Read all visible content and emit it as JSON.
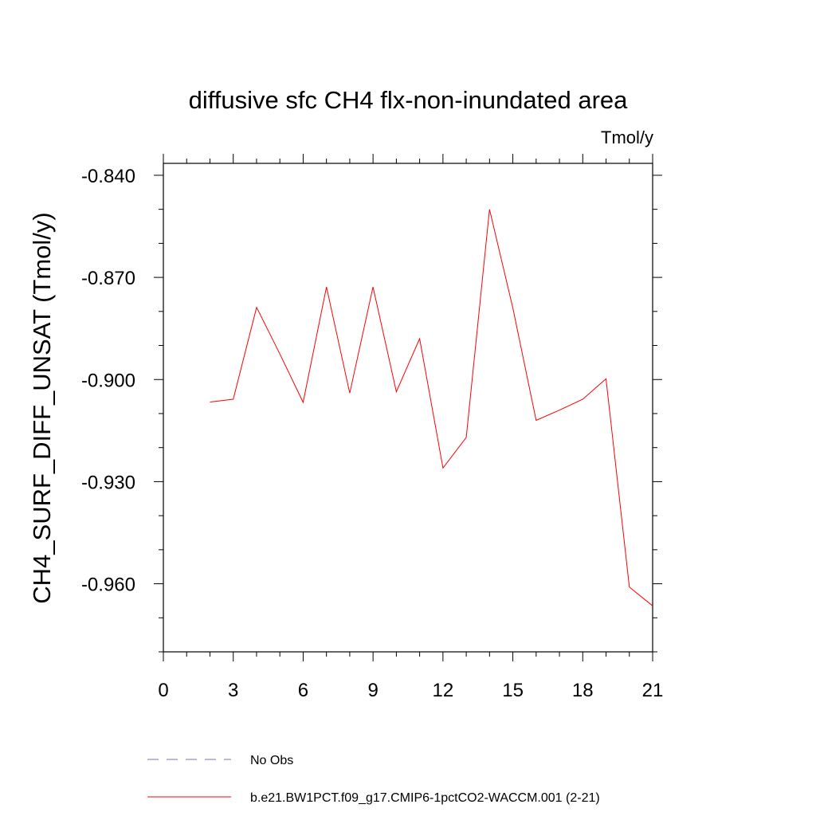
{
  "chart_data": {
    "type": "line",
    "title": "diffusive sfc CH4 flx-non-inundated area",
    "units_label": "Tmol/y",
    "ylabel": "CH4_SURF_DIFF_UNSAT  (Tmol/y)",
    "xlabel": "",
    "xlim": [
      0,
      21
    ],
    "ylim": [
      -0.98,
      -0.8365
    ],
    "x_ticks": [
      0,
      3,
      6,
      9,
      12,
      15,
      18,
      21
    ],
    "x_tick_labels": [
      "0",
      "3",
      "6",
      "9",
      "12",
      "15",
      "18",
      "21"
    ],
    "y_ticks": [
      -0.84,
      -0.87,
      -0.9,
      -0.93,
      -0.96
    ],
    "y_tick_labels": [
      "-0.840",
      "-0.870",
      "-0.900",
      "-0.930",
      "-0.960"
    ],
    "grid": false,
    "legend_position": "bottom-left",
    "series": [
      {
        "name": "No Obs",
        "color": "#7b6fc2",
        "dash": "dashed",
        "x": [],
        "y": []
      },
      {
        "name": "b.e21.BW1PCT.f09_g17.CMIP6-1pctCO2-WACCM.001 (2-21)",
        "color": "#ff0000",
        "dash": "solid",
        "x": [
          2,
          3,
          4,
          5,
          6,
          7,
          8,
          9,
          10,
          11,
          12,
          13,
          14,
          15,
          16,
          17,
          18,
          19,
          20,
          21
        ],
        "y": [
          -0.9066,
          -0.9058,
          -0.8788,
          -0.8925,
          -0.9067,
          -0.8728,
          -0.904,
          -0.8728,
          -0.9036,
          -0.888,
          -0.926,
          -0.917,
          -0.85,
          -0.879,
          -0.912,
          -0.909,
          -0.9058,
          -0.8998,
          -0.961,
          -0.9665
        ]
      }
    ]
  }
}
